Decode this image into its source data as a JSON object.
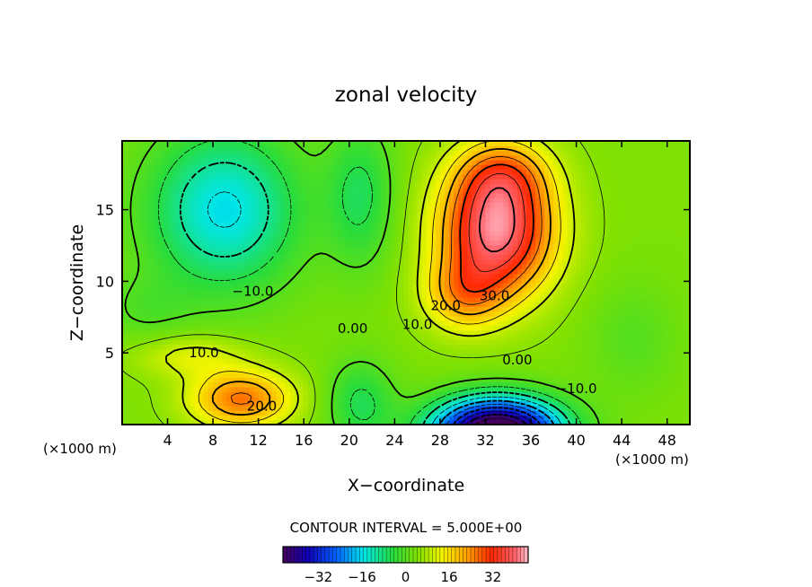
{
  "chart_data": {
    "type": "heatmap",
    "title": "zonal velocity",
    "xlabel": "X−coordinate",
    "ylabel": "Z−coordinate",
    "x_unit_left": "(×1000 m)",
    "x_unit_right": "(×1000 m)",
    "xlim": [
      0,
      50
    ],
    "ylim": [
      0,
      19.8
    ],
    "x_ticks": [
      4,
      8,
      12,
      16,
      20,
      24,
      28,
      32,
      36,
      40,
      44,
      48
    ],
    "y_ticks": [
      5,
      10,
      15
    ],
    "contour_interval_text": "CONTOUR INTERVAL = 5.000E+00",
    "colorbar": {
      "range": [
        -45,
        45
      ],
      "ticks": [
        -32,
        -16,
        0,
        16,
        32
      ],
      "tick_labels": [
        "−32",
        "−16",
        "0",
        "16",
        "32"
      ]
    },
    "contour_labels": [
      {
        "text": "−10.0",
        "x": 11.5,
        "z": 9.3
      },
      {
        "text": "0.00",
        "x": 20.3,
        "z": 6.7
      },
      {
        "text": "10.0",
        "x": 7.2,
        "z": 5.0
      },
      {
        "text": "20.0",
        "x": 12.3,
        "z": 1.3
      },
      {
        "text": "10.0",
        "x": 26.0,
        "z": 7.0
      },
      {
        "text": "20.0",
        "x": 28.5,
        "z": 8.3
      },
      {
        "text": "30.0",
        "x": 32.8,
        "z": 9.0
      },
      {
        "text": "0.00",
        "x": 34.8,
        "z": 4.5
      },
      {
        "text": "−10.0",
        "x": 40.0,
        "z": 2.5
      }
    ],
    "field_features": [
      {
        "kind": "max",
        "x": 33,
        "z": 13,
        "value": 40
      },
      {
        "kind": "max",
        "x": 33.5,
        "z": 16.5,
        "value": 32
      },
      {
        "kind": "max",
        "x": 10.5,
        "z": 1.5,
        "value": 25
      },
      {
        "kind": "max",
        "x": 6,
        "z": 5,
        "value": 12
      },
      {
        "kind": "min",
        "x": 8,
        "z": 14,
        "value": -16
      },
      {
        "kind": "min",
        "x": 33,
        "z": 0,
        "value": -45
      }
    ]
  }
}
